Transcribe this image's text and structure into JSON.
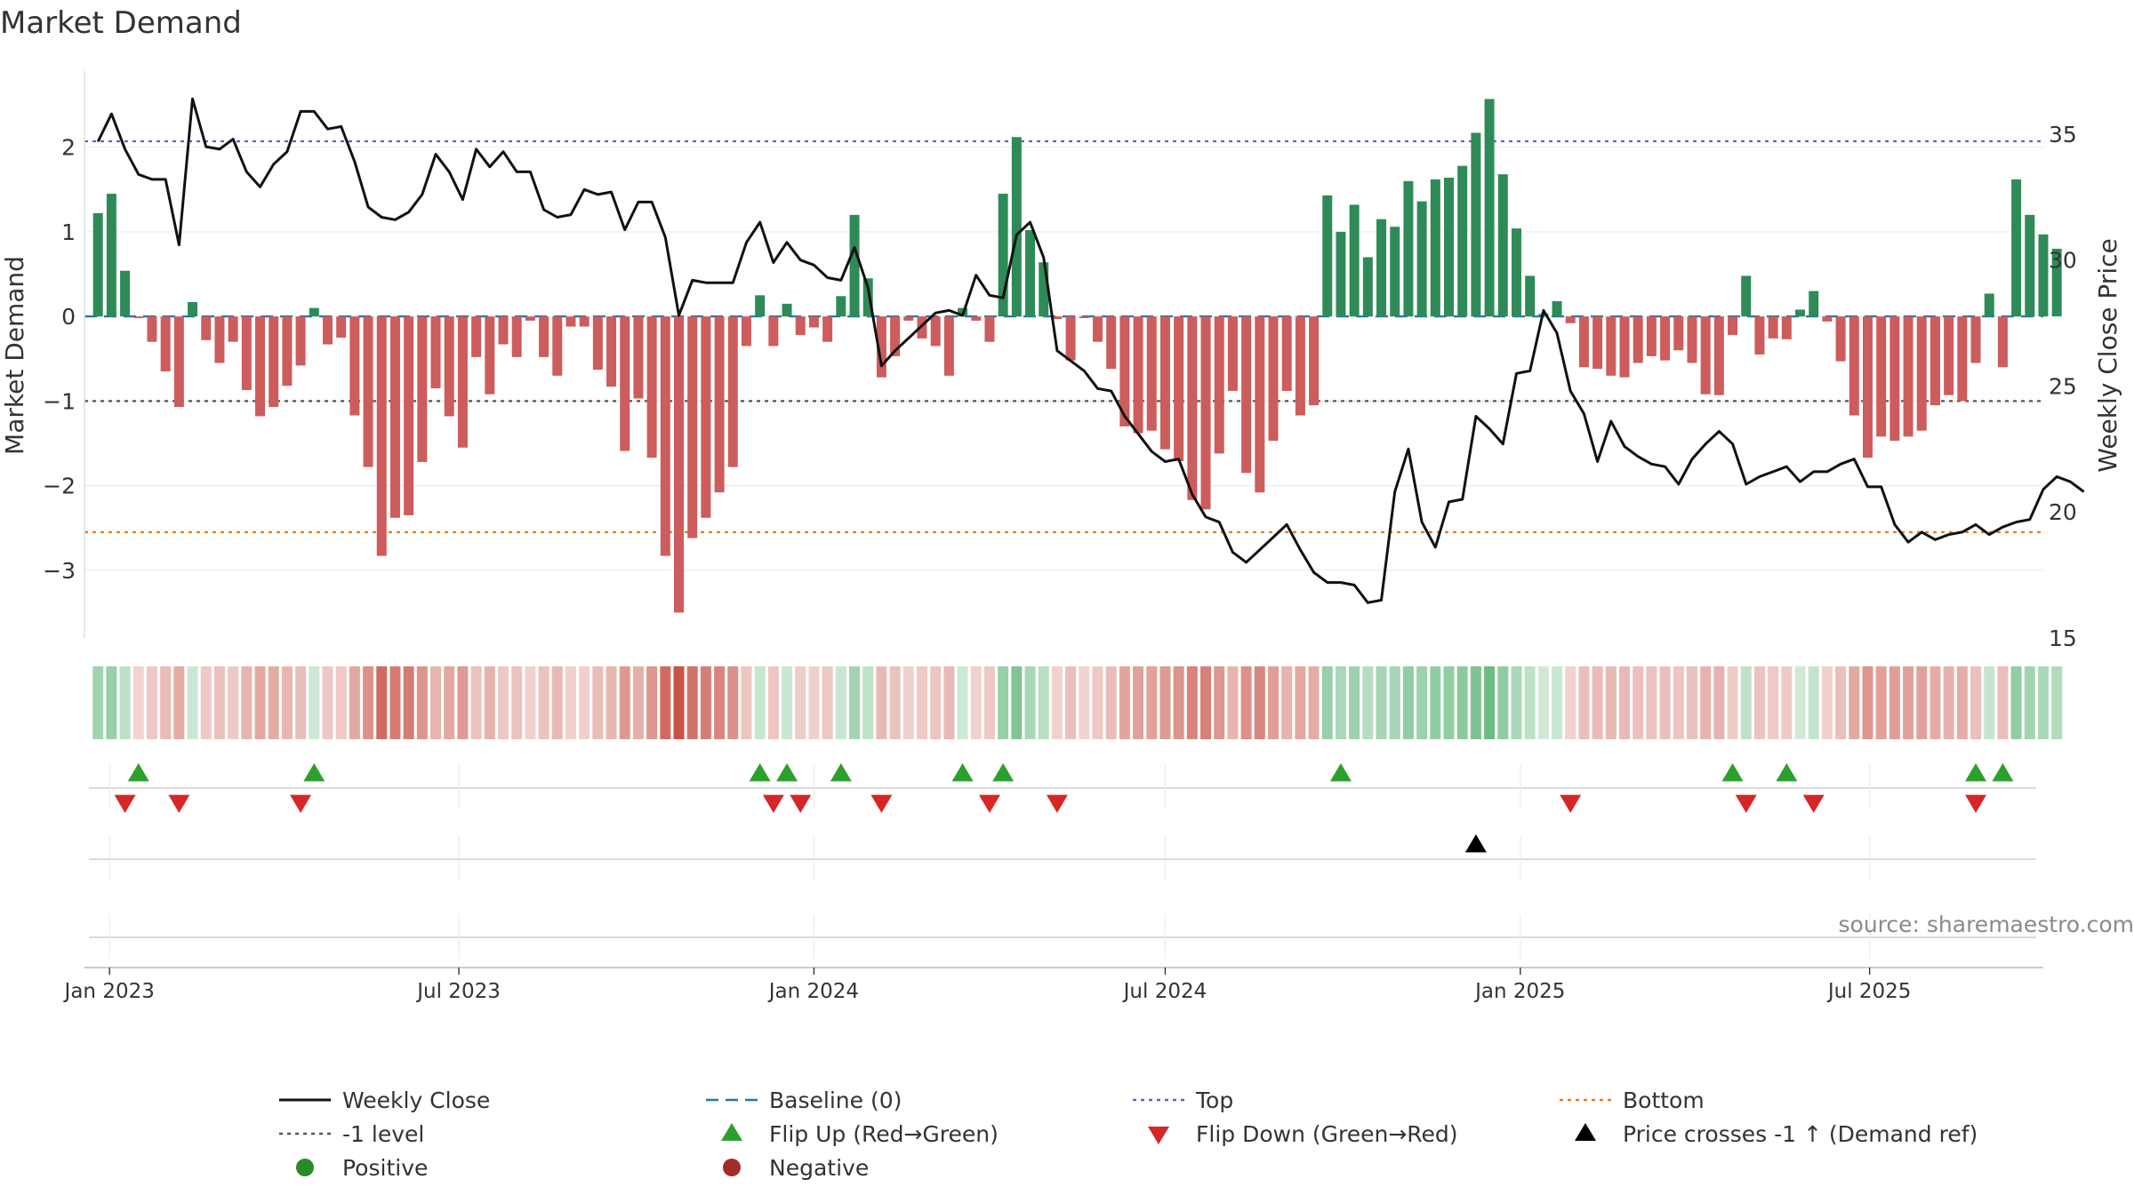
{
  "chart_data": {
    "type": "bar",
    "title": "Market Demand",
    "ylabel_left": "Market Demand",
    "ylabel_right": "Weekly Close Price",
    "ylim_left": [
      -3.8,
      2.9
    ],
    "ylim_right": [
      15,
      37.5
    ],
    "yticks_left": [
      2,
      1,
      0,
      -1,
      -2,
      -3
    ],
    "yticks_right": [
      35,
      30,
      25,
      20,
      15
    ],
    "x_date_range": [
      "2022-12-19",
      "2025-09-29"
    ],
    "x_start_date": "2022-12-26",
    "x_step_days": 7,
    "x_ticks": [
      {
        "label": "Jan 2023",
        "date": "2023-01-01"
      },
      {
        "label": "Jul 2023",
        "date": "2023-07-01"
      },
      {
        "label": "Jan 2024",
        "date": "2024-01-01"
      },
      {
        "label": "Jul 2024",
        "date": "2024-07-01"
      },
      {
        "label": "Jan 2025",
        "date": "2025-01-01"
      },
      {
        "label": "Jul 2025",
        "date": "2025-07-01"
      }
    ],
    "reference_lines": {
      "top": 2.07,
      "level_minus_1": -1,
      "bottom": -2.55,
      "baseline": 0
    },
    "demand": [
      1.22,
      1.45,
      0.54,
      -0.02,
      -0.3,
      -0.65,
      -1.07,
      0.17,
      -0.28,
      -0.55,
      -0.3,
      -0.87,
      -1.18,
      -1.07,
      -0.82,
      -0.58,
      0.1,
      -0.33,
      -0.25,
      -1.17,
      -1.78,
      -2.83,
      -2.38,
      -2.35,
      -1.72,
      -0.85,
      -1.18,
      -1.55,
      -0.48,
      -0.92,
      -0.33,
      -0.48,
      -0.05,
      -0.48,
      -0.7,
      -0.12,
      -0.12,
      -0.63,
      -0.83,
      -1.59,
      -0.97,
      -1.67,
      -2.83,
      -3.5,
      -2.62,
      -2.38,
      -2.08,
      -1.78,
      -0.35,
      0.25,
      -0.35,
      0.15,
      -0.22,
      -0.13,
      -0.3,
      0.24,
      1.2,
      0.45,
      -0.72,
      -0.47,
      -0.05,
      -0.26,
      -0.35,
      -0.7,
      0.1,
      -0.05,
      -0.3,
      1.45,
      2.12,
      1.02,
      0.64,
      -0.03,
      -0.52,
      -0.02,
      -0.3,
      -0.62,
      -1.3,
      -1.38,
      -1.35,
      -1.57,
      -1.71,
      -2.17,
      -2.28,
      -1.62,
      -0.88,
      -1.85,
      -2.08,
      -1.47,
      -0.88,
      -1.17,
      -1.05,
      1.43,
      1.0,
      1.32,
      0.7,
      1.15,
      1.06,
      1.6,
      1.36,
      1.62,
      1.64,
      1.78,
      2.17,
      2.57,
      1.68,
      1.04,
      0.48,
      0.03,
      0.18,
      -0.08,
      -0.6,
      -0.62,
      -0.7,
      -0.72,
      -0.55,
      -0.47,
      -0.52,
      -0.4,
      -0.55,
      -0.92,
      -0.93,
      -0.22,
      0.48,
      -0.45,
      -0.26,
      -0.27,
      0.08,
      0.3,
      -0.06,
      -0.53,
      -1.17,
      -1.67,
      -1.42,
      -1.47,
      -1.42,
      -1.35,
      -1.05,
      -0.93,
      -1.0,
      -0.55,
      0.27,
      -0.6,
      1.62,
      1.2,
      0.97,
      0.8
    ],
    "weekly_close": [
      34.7,
      35.8,
      34.4,
      33.4,
      33.2,
      33.2,
      30.6,
      36.4,
      34.5,
      34.4,
      34.8,
      33.5,
      32.9,
      33.8,
      34.3,
      35.9,
      35.9,
      35.2,
      35.3,
      33.9,
      32.1,
      31.7,
      31.6,
      31.9,
      32.6,
      34.2,
      33.5,
      32.4,
      34.4,
      33.7,
      34.3,
      33.5,
      33.5,
      32.0,
      31.7,
      31.8,
      32.8,
      32.6,
      32.7,
      31.2,
      32.3,
      32.3,
      30.9,
      27.8,
      29.2,
      29.1,
      29.1,
      29.1,
      30.7,
      31.5,
      29.9,
      30.7,
      30.0,
      29.8,
      29.3,
      29.2,
      30.5,
      28.9,
      25.8,
      26.4,
      26.9,
      27.4,
      27.9,
      28.0,
      27.8,
      29.4,
      28.6,
      28.5,
      31.0,
      31.5,
      30.1,
      26.4,
      26.0,
      25.6,
      24.9,
      24.8,
      23.8,
      23.1,
      22.4,
      22.0,
      22.1,
      20.7,
      19.8,
      19.6,
      18.4,
      18.0,
      18.5,
      19.0,
      19.5,
      18.5,
      17.6,
      17.2,
      17.2,
      17.1,
      16.4,
      16.5,
      20.8,
      22.5,
      19.6,
      18.6,
      20.4,
      20.5,
      23.8,
      23.3,
      22.7,
      25.5,
      25.6,
      28.0,
      27.1,
      24.8,
      23.9,
      22.0,
      23.6,
      22.6,
      22.2,
      21.9,
      21.8,
      21.1,
      22.1,
      22.7,
      23.2,
      22.7,
      21.1,
      21.4,
      21.6,
      21.8,
      21.2,
      21.6,
      21.6,
      21.9,
      22.1,
      21.0,
      21.0,
      19.5,
      18.8,
      19.2,
      18.9,
      19.1,
      19.2,
      19.5,
      19.1,
      19.4,
      19.6,
      19.7,
      20.9,
      21.4,
      21.2,
      20.8
    ],
    "flip_up_weeks": [
      3,
      16,
      49,
      51,
      55,
      64,
      67,
      92,
      121,
      125,
      139,
      141
    ],
    "flip_down_weeks": [
      2,
      6,
      15,
      50,
      52,
      58,
      66,
      71,
      109,
      122,
      127,
      139
    ],
    "price_cross_weeks": [
      102
    ],
    "strip_rows": [
      "flips",
      "price-crosses",
      "empty"
    ],
    "source_text": "source: sharemaestro.com",
    "legend": [
      {
        "label": "Weekly Close",
        "symbol": "line",
        "color": "#111111"
      },
      {
        "label": "Baseline (0)",
        "symbol": "dash",
        "color": "#1f77b4"
      },
      {
        "label": "Top",
        "symbol": "dot",
        "color": "#6a5acd"
      },
      {
        "label": "Bottom",
        "symbol": "dot",
        "color": "#e67e22"
      },
      {
        "label": "-1 level",
        "symbol": "dot",
        "color": "#555555"
      },
      {
        "label": "Flip Up (Red→Green)",
        "symbol": "tri-up",
        "color": "#2ca02c"
      },
      {
        "label": "Flip Down (Green→Red)",
        "symbol": "tri-down",
        "color": "#d62728"
      },
      {
        "label": "Price crosses -1 ↑ (Demand ref)",
        "symbol": "tri-up",
        "color": "#000000"
      },
      {
        "label": "Positive",
        "symbol": "circle",
        "color": "#2a8a2a"
      },
      {
        "label": "Negative",
        "symbol": "circle",
        "color": "#a52a2a"
      }
    ],
    "colors": {
      "positive_bar": "#2e8b57",
      "negative_bar": "#cd5c5c",
      "heat_positive": "#2e9e4f",
      "heat_negative": "#c0392b"
    }
  }
}
